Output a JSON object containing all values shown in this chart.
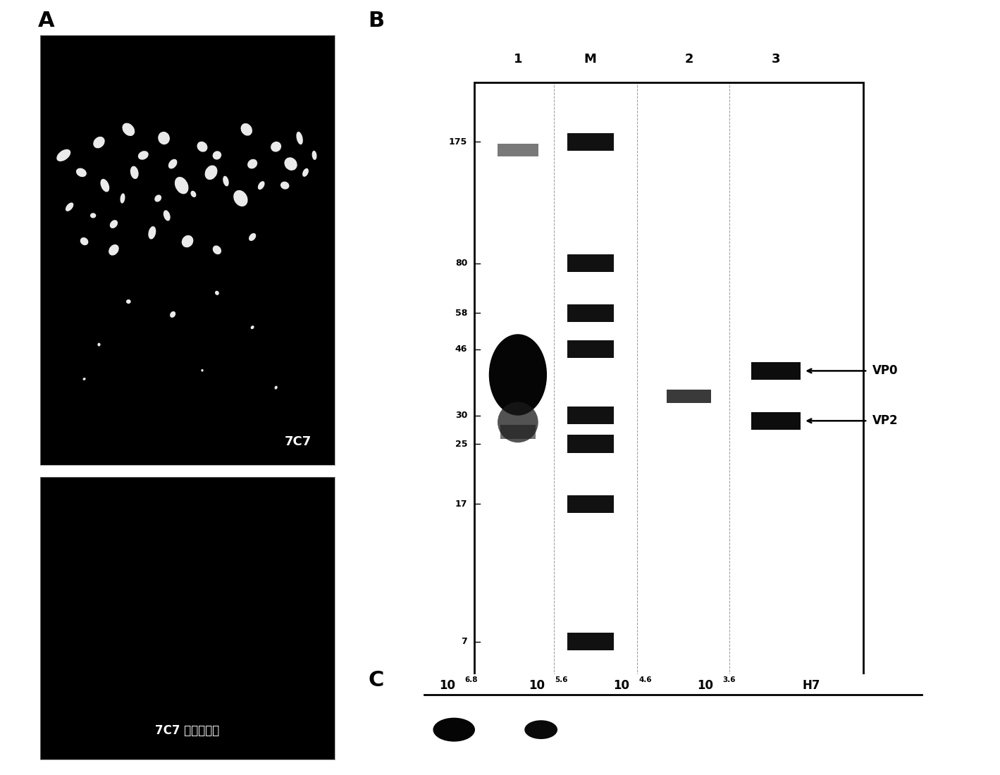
{
  "bg_color": "#ffffff",
  "panel_a_label": "A",
  "panel_b_label": "B",
  "panel_c_label": "C",
  "label_7c7": "7C7",
  "label_7c7_uninfected": "7C7 未被感染的",
  "mw_markers": [
    175,
    80,
    58,
    46,
    30,
    25,
    17,
    7
  ],
  "lane_labels": [
    "1",
    "M",
    "2",
    "3"
  ],
  "vp0_label": "VP0",
  "vp2_label": "VP2",
  "conc_bases": [
    "10",
    "10",
    "10",
    "10",
    "H7"
  ],
  "conc_exponents": [
    "6.8",
    "5.6",
    "4.6",
    "3.6",
    ""
  ],
  "gel_bg": "#f5f3ef",
  "band_color": "#111111",
  "blob_color": "#050505"
}
